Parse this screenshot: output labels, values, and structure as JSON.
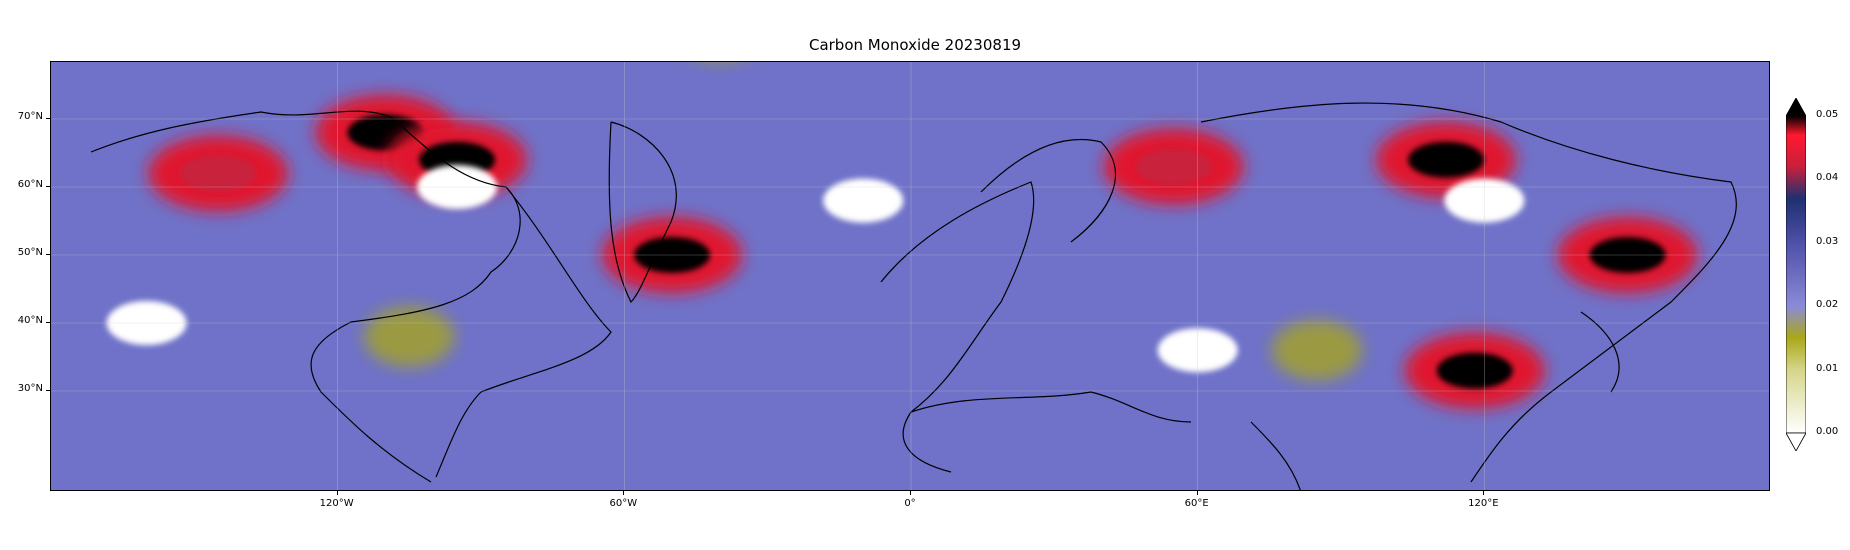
{
  "title": "Carbon Monoxide 20230819",
  "map": {
    "projection": "lat-lon",
    "lon_range": [
      -180,
      180
    ],
    "lat_range": [
      25,
      85
    ],
    "background_color": "#6f72c8",
    "lat_ticks": [
      {
        "lat": 70,
        "label": "70°N"
      },
      {
        "lat": 60,
        "label": "60°N"
      },
      {
        "lat": 50,
        "label": "50°N"
      },
      {
        "lat": 40,
        "label": "40°N"
      },
      {
        "lat": 30,
        "label": "30°N"
      }
    ],
    "lon_ticks": [
      {
        "lon": -120,
        "label": "120°W"
      },
      {
        "lon": -60,
        "label": "60°W"
      },
      {
        "lon": 0,
        "label": "0°"
      },
      {
        "lon": 60,
        "label": "60°E"
      },
      {
        "lon": 120,
        "label": "120°E"
      }
    ],
    "plumes": [
      {
        "lon": -110,
        "lat": 68,
        "level": 0.05
      },
      {
        "lon": -95,
        "lat": 64,
        "level": 0.05
      },
      {
        "lon": -50,
        "lat": 50,
        "level": 0.05
      },
      {
        "lon": 55,
        "lat": 63,
        "level": 0.045
      },
      {
        "lon": 112,
        "lat": 64,
        "level": 0.05
      },
      {
        "lon": 150,
        "lat": 50,
        "level": 0.05
      },
      {
        "lon": 118,
        "lat": 33,
        "level": 0.05
      },
      {
        "lon": -145,
        "lat": 62,
        "level": 0.045
      }
    ],
    "cloud_gaps": [
      {
        "lon": -160,
        "lat": 40
      },
      {
        "lon": -95,
        "lat": 60
      },
      {
        "lon": -10,
        "lat": 58
      },
      {
        "lon": 120,
        "lat": 58
      },
      {
        "lon": 60,
        "lat": 36
      }
    ],
    "low_values": [
      {
        "lon": -105,
        "lat": 38,
        "level": 0.015
      },
      {
        "lon": 85,
        "lat": 36,
        "level": 0.015
      },
      {
        "lon": -40,
        "lat": 83,
        "level": 0.015
      }
    ]
  },
  "colorbar": {
    "min": 0.0,
    "max": 0.05,
    "extend": "both",
    "stops": [
      {
        "value": 0.0,
        "color": "#ffffff"
      },
      {
        "value": 0.01,
        "color": "#d5d58a"
      },
      {
        "value": 0.015,
        "color": "#aaa818"
      },
      {
        "value": 0.02,
        "color": "#8a8ad8"
      },
      {
        "value": 0.03,
        "color": "#4f50a8"
      },
      {
        "value": 0.037,
        "color": "#1e3070"
      },
      {
        "value": 0.042,
        "color": "#c8203c"
      },
      {
        "value": 0.047,
        "color": "#ff1830"
      },
      {
        "value": 0.05,
        "color": "#000000"
      }
    ],
    "tick_labels": [
      "0.05",
      "0.04",
      "0.03",
      "0.02",
      "0.01",
      "0.00"
    ]
  }
}
